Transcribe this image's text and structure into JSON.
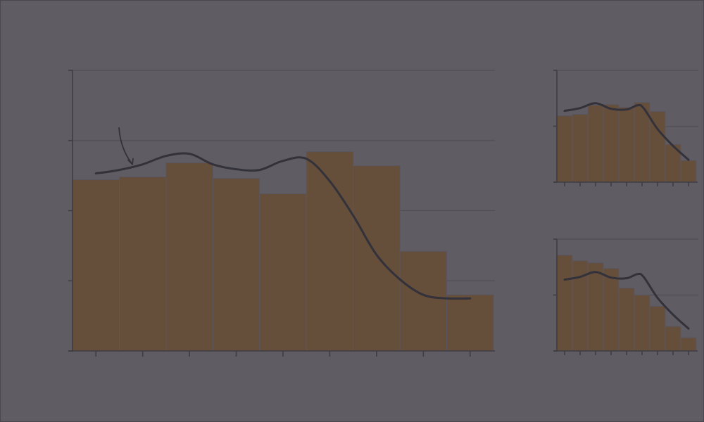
{
  "colors": {
    "background": "#5f5c63",
    "bar_fill": "#654e3a",
    "bar_divider": "#5a5660",
    "line": "#33313a",
    "axis": "#3f3c44",
    "grid": "#514e56"
  },
  "chart_data": [
    {
      "type": "bar",
      "title": "",
      "xlabel": "",
      "ylabel": "",
      "bins": 9,
      "values": [
        24.4,
        24.8,
        26.8,
        24.6,
        22.4,
        28.4,
        26.4,
        14.2,
        8.0
      ],
      "ylim": [
        0,
        40
      ],
      "yticks": [
        0,
        10,
        20,
        30,
        40
      ],
      "grid": true,
      "overlay_line": {
        "type": "line",
        "smooth": true,
        "x": [
          0.5,
          1.0,
          1.5,
          2.0,
          2.5,
          3.0,
          3.5,
          4.0,
          4.5,
          5.0,
          5.5,
          6.0,
          6.5,
          7.0,
          7.5,
          8.0,
          8.5
        ],
        "y": [
          25.3,
          25.8,
          26.6,
          27.8,
          28.1,
          26.6,
          25.9,
          25.8,
          27.1,
          27.4,
          24.2,
          19.3,
          13.7,
          10.2,
          8.0,
          7.5,
          7.5
        ]
      },
      "annotation": {
        "type": "arrow",
        "target_x": 1.28,
        "target_y": 26.6
      }
    },
    {
      "type": "bar",
      "title": "",
      "xlabel": "",
      "ylabel": "",
      "bins": 9,
      "values": [
        9.5,
        9.7,
        11.0,
        11.1,
        10.7,
        11.4,
        10.1,
        5.4,
        3.1
      ],
      "ylim": [
        0,
        16
      ],
      "yticks": [
        0,
        8,
        16
      ],
      "grid": true,
      "overlay_line": {
        "type": "line",
        "smooth": true,
        "x": [
          0.5,
          1.5,
          2.5,
          3.5,
          4.5,
          5.2,
          5.6,
          6.5,
          7.5,
          8.5
        ],
        "y": [
          10.2,
          10.6,
          11.3,
          10.5,
          10.4,
          11.0,
          10.6,
          7.6,
          5.2,
          3.2
        ]
      }
    },
    {
      "type": "bar",
      "title": "",
      "xlabel": "",
      "ylabel": "",
      "bins": 9,
      "values": [
        13.7,
        12.9,
        12.6,
        11.8,
        9.0,
        8.0,
        6.4,
        3.5,
        1.9
      ],
      "ylim": [
        0,
        16
      ],
      "yticks": [
        0,
        8,
        16
      ],
      "grid": true,
      "overlay_line": {
        "type": "line",
        "smooth": true,
        "x": [
          0.5,
          1.5,
          2.5,
          3.5,
          4.5,
          5.2,
          5.6,
          6.5,
          7.5,
          8.5
        ],
        "y": [
          10.2,
          10.6,
          11.3,
          10.5,
          10.4,
          11.0,
          10.6,
          7.6,
          5.2,
          3.2
        ]
      }
    }
  ]
}
